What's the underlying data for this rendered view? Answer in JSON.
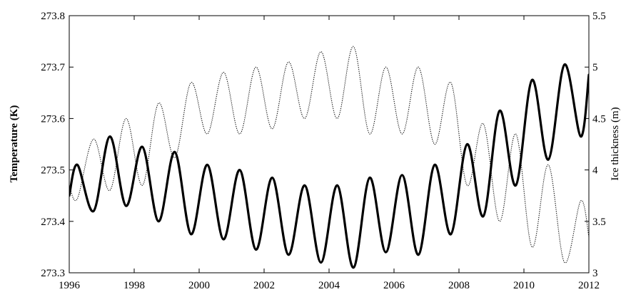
{
  "chart_data": {
    "type": "line",
    "title": "",
    "xlabel": "",
    "ylabel": "Temperature (K)",
    "y2label": "Ice thickness (m)",
    "xlim": [
      1996,
      2012
    ],
    "ylim": [
      273.3,
      273.8
    ],
    "y2lim": [
      3,
      5.5
    ],
    "grid": false,
    "x_ticks": [
      "1996",
      "1998",
      "2000",
      "2002",
      "2004",
      "2006",
      "2008",
      "2010",
      "2012"
    ],
    "y_ticks": [
      "273.3",
      "273.4",
      "273.5",
      "273.6",
      "273.7",
      "273.8"
    ],
    "y2_ticks": [
      "3",
      "3.5",
      "4",
      "4.5",
      "5",
      "5.5"
    ],
    "series": [
      {
        "axis": "left",
        "style": "solid-thick",
        "color": "#000000",
        "points": [
          [
            1996.0,
            273.45
          ],
          [
            1996.25,
            273.51
          ],
          [
            1996.75,
            273.42
          ],
          [
            1997.25,
            273.565
          ],
          [
            1997.75,
            273.43
          ],
          [
            1998.25,
            273.545
          ],
          [
            1998.75,
            273.4
          ],
          [
            1999.25,
            273.535
          ],
          [
            1999.75,
            273.375
          ],
          [
            2000.25,
            273.51
          ],
          [
            2000.75,
            273.365
          ],
          [
            2001.25,
            273.5
          ],
          [
            2001.75,
            273.345
          ],
          [
            2002.25,
            273.485
          ],
          [
            2002.75,
            273.335
          ],
          [
            2003.25,
            273.47
          ],
          [
            2003.75,
            273.32
          ],
          [
            2004.25,
            273.47
          ],
          [
            2004.75,
            273.31
          ],
          [
            2005.25,
            273.485
          ],
          [
            2005.75,
            273.34
          ],
          [
            2006.25,
            273.49
          ],
          [
            2006.75,
            273.335
          ],
          [
            2007.25,
            273.51
          ],
          [
            2007.75,
            273.375
          ],
          [
            2008.25,
            273.55
          ],
          [
            2008.75,
            273.41
          ],
          [
            2009.25,
            273.615
          ],
          [
            2009.75,
            273.47
          ],
          [
            2010.25,
            273.675
          ],
          [
            2010.75,
            273.52
          ],
          [
            2011.25,
            273.705
          ],
          [
            2011.75,
            273.565
          ],
          [
            2012.0,
            273.685
          ]
        ]
      },
      {
        "axis": "right",
        "style": "dotted",
        "color": "#000000",
        "points": [
          [
            1996.0,
            3.85
          ],
          [
            1996.25,
            3.72
          ],
          [
            1996.75,
            4.3
          ],
          [
            1997.25,
            3.8
          ],
          [
            1997.75,
            4.5
          ],
          [
            1998.25,
            3.85
          ],
          [
            1998.75,
            4.65
          ],
          [
            1999.25,
            4.12
          ],
          [
            1999.75,
            4.85
          ],
          [
            2000.25,
            4.35
          ],
          [
            2000.75,
            4.95
          ],
          [
            2001.25,
            4.35
          ],
          [
            2001.75,
            5.0
          ],
          [
            2002.25,
            4.4
          ],
          [
            2002.75,
            5.05
          ],
          [
            2003.25,
            4.5
          ],
          [
            2003.75,
            5.15
          ],
          [
            2004.25,
            4.5
          ],
          [
            2004.75,
            5.2
          ],
          [
            2005.25,
            4.35
          ],
          [
            2005.75,
            5.0
          ],
          [
            2006.25,
            4.35
          ],
          [
            2006.75,
            5.0
          ],
          [
            2007.25,
            4.25
          ],
          [
            2007.75,
            4.85
          ],
          [
            2008.25,
            3.85
          ],
          [
            2008.75,
            4.45
          ],
          [
            2009.25,
            3.5
          ],
          [
            2009.75,
            4.35
          ],
          [
            2010.25,
            3.25
          ],
          [
            2010.75,
            4.05
          ],
          [
            2011.25,
            3.1
          ],
          [
            2011.75,
            3.7
          ],
          [
            2012.0,
            3.35
          ]
        ]
      }
    ]
  }
}
